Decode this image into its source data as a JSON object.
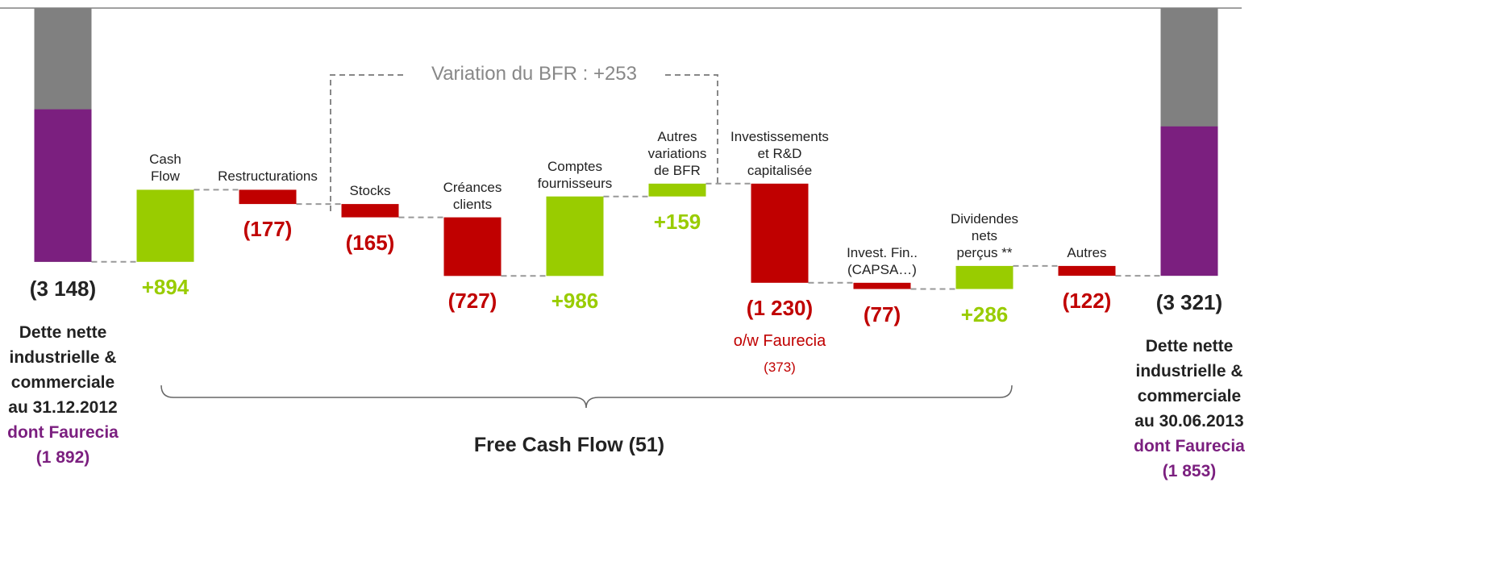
{
  "chart_data": {
    "type": "waterfall",
    "categories": [
      "",
      "Cash\nFlow",
      "Restructurations",
      "Stocks",
      "Créances\nclients",
      "Comptes\nfournisseurs",
      "Autres\nvariations\nde BFR",
      "Investissements\net R&D\ncapitalisée",
      "Invest. Fin..\n(CAPSA…)",
      "Dividendes\nnets\nperçus **",
      "Autres",
      ""
    ],
    "values": [
      -3148,
      894,
      -177,
      -165,
      -727,
      986,
      159,
      -1230,
      -77,
      286,
      -122,
      -3321
    ],
    "value_labels": [
      "(3 148)",
      "+894",
      "(177)",
      "(165)",
      "(727)",
      "+986",
      "+159",
      "(1 230)",
      "(77)",
      "+286",
      "(122)",
      "(3 321)"
    ],
    "totals": [
      {
        "description": "Dette nette\nindustrielle &\ncommerciale\nau 31.12.2012",
        "sub_name": "dont Faurecia",
        "sub_value": -1892,
        "sub_label": "(1 892)"
      },
      {
        "description": "Dette nette\nindustrielle &\ncommerciale\nau 30.06.2013",
        "sub_name": "dont Faurecia",
        "sub_value": -1853,
        "sub_label": "(1 853)"
      }
    ],
    "note": {
      "text": "o/w Faurecia",
      "value": -373,
      "label": "(373)"
    },
    "annotations": [
      "Variation du BFR : +253",
      "Free Cash Flow (51)"
    ],
    "colors": {
      "increase": "#99cc00",
      "decrease": "#c00000",
      "total": "#808080",
      "sub": "#7b1f7f"
    }
  }
}
